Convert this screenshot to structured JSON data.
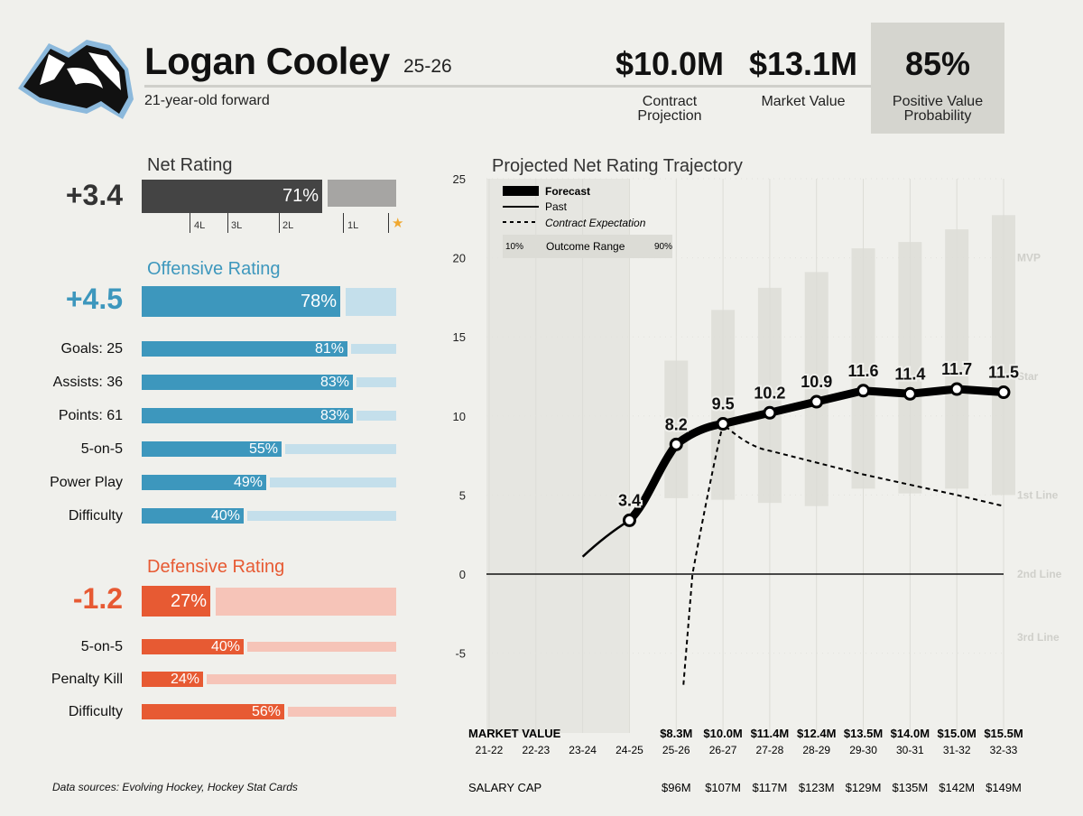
{
  "header": {
    "player_name": "Logan Cooley",
    "season": "25-26",
    "subtitle": "21-year-old forward",
    "contract_projection_value": "$10.0M",
    "contract_projection_label_1": "Contract",
    "contract_projection_label_2": "Projection",
    "market_value_value": "$13.1M",
    "market_value_label": "Market Value",
    "pvp_value": "85%",
    "pvp_label_1": "Positive Value",
    "pvp_label_2": "Probability"
  },
  "colors": {
    "offense": "#3d97bd",
    "offense_light": "#c4dfeb",
    "defense": "#e75a33",
    "defense_light": "#f6c4b8",
    "net_dark": "#444444",
    "net_gray": "#a6a5a3",
    "star": "#f0a830"
  },
  "net_rating": {
    "title": "Net Rating",
    "value": "+3.4",
    "pct": 71,
    "pct_label": "71%",
    "ticks": [
      "4L",
      "3L",
      "2L",
      "1L"
    ],
    "star": "★"
  },
  "offensive": {
    "title": "Offensive Rating",
    "value": "+4.5",
    "pct": 78,
    "pct_label": "78%",
    "rows": [
      {
        "label": "Goals: 25",
        "pct": 81,
        "pct_label": "81%"
      },
      {
        "label": "Assists: 36",
        "pct": 83,
        "pct_label": "83%"
      },
      {
        "label": "Points: 61",
        "pct": 83,
        "pct_label": "83%"
      },
      {
        "label": "5-on-5",
        "pct": 55,
        "pct_label": "55%"
      },
      {
        "label": "Power Play",
        "pct": 49,
        "pct_label": "49%"
      },
      {
        "label": "Difficulty",
        "pct": 40,
        "pct_label": "40%"
      }
    ]
  },
  "defensive": {
    "title": "Defensive Rating",
    "value": "-1.2",
    "pct": 27,
    "pct_label": "27%",
    "rows": [
      {
        "label": "5-on-5",
        "pct": 40,
        "pct_label": "40%"
      },
      {
        "label": "Penalty Kill",
        "pct": 24,
        "pct_label": "24%"
      },
      {
        "label": "Difficulty",
        "pct": 56,
        "pct_label": "56%"
      }
    ]
  },
  "source_note": "Data sources: Evolving Hockey, Hockey Stat Cards",
  "chart_data": {
    "type": "line",
    "title": "Projected Net Rating Trajectory",
    "ylim": [
      -10,
      25
    ],
    "yticks": [
      -5,
      0,
      5,
      10,
      15,
      20,
      25
    ],
    "x": [
      "21-22",
      "22-23",
      "23-24",
      "24-25",
      "25-26",
      "26-27",
      "27-28",
      "28-29",
      "29-30",
      "30-31",
      "31-32",
      "32-33"
    ],
    "legend": {
      "forecast": "Forecast",
      "past": "Past",
      "contract": "Contract Expectation",
      "range_low": "10%",
      "range_label": "Outcome Range",
      "range_high": "90%"
    },
    "tier_labels": [
      {
        "label": "MVP",
        "y": 20
      },
      {
        "label": "Star",
        "y": 12.5
      },
      {
        "label": "1st Line",
        "y": 5
      },
      {
        "label": "2nd Line",
        "y": 0
      },
      {
        "label": "3rd Line",
        "y": -4
      }
    ],
    "past": {
      "x": [
        "23-24",
        "24-25"
      ],
      "y": [
        1.1,
        3.4
      ]
    },
    "forecast": {
      "x": [
        "24-25",
        "25-26",
        "26-27",
        "27-28",
        "28-29",
        "29-30",
        "30-31",
        "31-32",
        "32-33"
      ],
      "y": [
        3.4,
        8.2,
        9.5,
        10.2,
        10.9,
        11.6,
        11.4,
        11.7,
        11.5
      ],
      "labels": [
        "3.4",
        "8.2",
        "9.5",
        "10.2",
        "10.9",
        "11.6",
        "11.4",
        "11.7",
        "11.5"
      ]
    },
    "contract_expectation": {
      "x": [
        "25-26",
        "25-26",
        "26-27",
        "27-28",
        "29-30",
        "31-32",
        "32-33"
      ],
      "y": [
        -7,
        0,
        9.5,
        7.8,
        6.3,
        5,
        4.3
      ]
    },
    "outcome_range": [
      {
        "x": "25-26",
        "low": 4.8,
        "high": 13.5
      },
      {
        "x": "26-27",
        "low": 4.7,
        "high": 16.7
      },
      {
        "x": "27-28",
        "low": 4.5,
        "high": 18.1
      },
      {
        "x": "28-29",
        "low": 4.3,
        "high": 19.1
      },
      {
        "x": "29-30",
        "low": 5.4,
        "high": 20.6
      },
      {
        "x": "30-31",
        "low": 5.1,
        "high": 21.0
      },
      {
        "x": "31-32",
        "low": 5.4,
        "high": 21.8
      },
      {
        "x": "32-33",
        "low": 5.0,
        "high": 22.7
      }
    ],
    "past_shade": [
      "21-22",
      "24-25"
    ],
    "market_value_title": "MARKET VALUE",
    "market_values": [
      "$8.3M",
      "$10.0M",
      "$11.4M",
      "$12.4M",
      "$13.5M",
      "$14.0M",
      "$15.0M",
      "$15.5M"
    ],
    "salary_cap_title": "SALARY CAP",
    "salary_caps": [
      "$96M",
      "$107M",
      "$117M",
      "$123M",
      "$129M",
      "$135M",
      "$142M",
      "$149M"
    ]
  }
}
